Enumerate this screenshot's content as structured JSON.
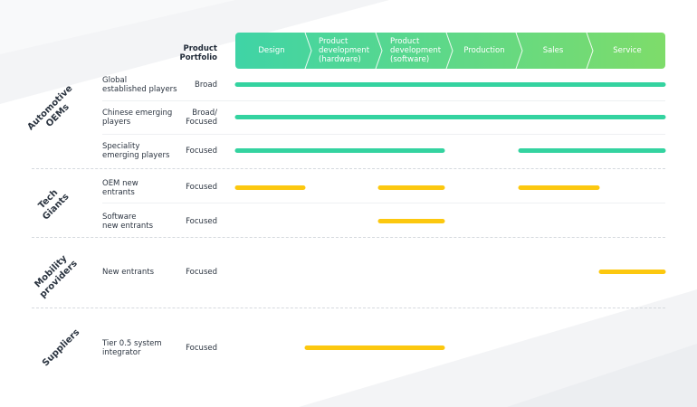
{
  "header": {
    "portfolio_label": "Product\nPortfolio",
    "stages": [
      "Design",
      "Product\ndevelopment\n(hardware)",
      "Product\ndevelopment\n(software)",
      "Production",
      "Sales",
      "Service"
    ]
  },
  "colors": {
    "chain_gradient_start": "#3fd4a6",
    "chain_gradient_end": "#7edc6a",
    "automotive_bar": "#34d3a0",
    "other_bar": "#fcc80f"
  },
  "groups": [
    {
      "name": "Automotive\nOEMs",
      "rows": [
        {
          "label": "Global\nestablished players",
          "portfolio": "Broad",
          "bar_color": "automotive",
          "coverage": [
            [
              0,
              6
            ]
          ]
        },
        {
          "label": "Chinese emerging\nplayers",
          "portfolio": "Broad/\nFocused",
          "bar_color": "automotive",
          "coverage": [
            [
              0,
              6
            ]
          ]
        },
        {
          "label": "Speciality\nemerging players",
          "portfolio": "Focused",
          "bar_color": "automotive",
          "coverage": [
            [
              0,
              3
            ],
            [
              4,
              6
            ]
          ]
        }
      ]
    },
    {
      "name": "Tech\nGiants",
      "rows": [
        {
          "label": "OEM new\nentrants",
          "portfolio": "Focused",
          "bar_color": "other",
          "coverage": [
            [
              0,
              1
            ],
            [
              2,
              3
            ],
            [
              4,
              5
            ]
          ]
        },
        {
          "label": "Software\nnew entrants",
          "portfolio": "Focused",
          "bar_color": "other",
          "coverage": [
            [
              2,
              3
            ]
          ]
        }
      ]
    },
    {
      "name": "Mobility\nproviders",
      "rows": [
        {
          "label": "New entrants",
          "portfolio": "Focused",
          "bar_color": "other",
          "coverage": [
            [
              5,
              6
            ]
          ]
        }
      ]
    },
    {
      "name": "Suppliers",
      "rows": [
        {
          "label": "Tier 0.5 system\nintegrator",
          "portfolio": "Focused",
          "bar_color": "other",
          "coverage": [
            [
              1,
              3
            ]
          ]
        }
      ]
    }
  ]
}
